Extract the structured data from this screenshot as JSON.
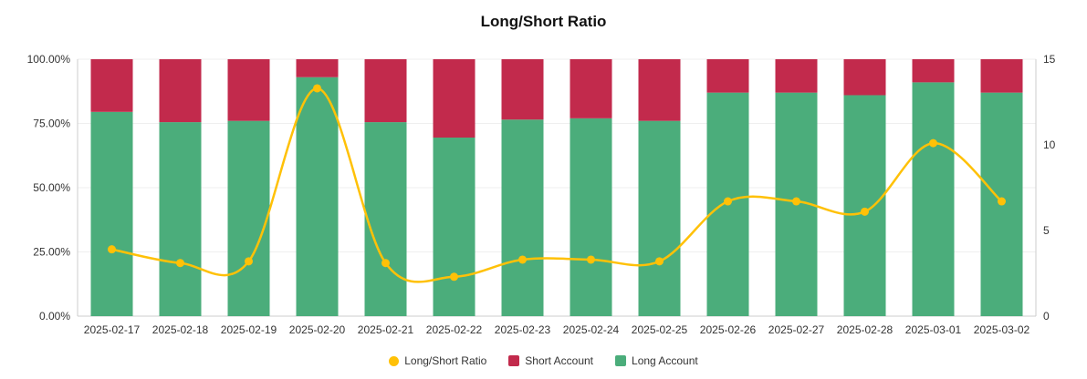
{
  "title": "Long/Short Ratio",
  "chart_data": {
    "type": "bar",
    "subtype": "stacked-percentage-bars-with-line-overlay",
    "title": "Long/Short Ratio",
    "categories": [
      "2025-02-17",
      "2025-02-18",
      "2025-02-19",
      "2025-02-20",
      "2025-02-21",
      "2025-02-22",
      "2025-02-23",
      "2025-02-24",
      "2025-02-25",
      "2025-02-26",
      "2025-02-27",
      "2025-02-28",
      "2025-03-01",
      "2025-03-02"
    ],
    "series": [
      {
        "name": "Long Account",
        "type": "bar",
        "stack": "total",
        "axis": "left",
        "unit": "%",
        "color": "#4bad7b",
        "values": [
          79.5,
          75.5,
          76,
          93,
          75.5,
          69.5,
          76.5,
          77,
          76,
          87,
          87,
          86,
          91,
          87
        ]
      },
      {
        "name": "Short Account",
        "type": "bar",
        "stack": "total",
        "axis": "left",
        "unit": "%",
        "color": "#c22a4c",
        "values": [
          20.5,
          24.5,
          24,
          7,
          24.5,
          30.5,
          23.5,
          23,
          24,
          13,
          13,
          14,
          9,
          13
        ]
      },
      {
        "name": "Long/Short Ratio",
        "type": "line",
        "axis": "right",
        "color": "#ffc107",
        "values": [
          3.9,
          3.1,
          3.2,
          13.3,
          3.1,
          2.3,
          3.3,
          3.3,
          3.2,
          6.7,
          6.7,
          6.1,
          10.1,
          6.7
        ]
      }
    ],
    "left_axis": {
      "min": 0,
      "max": 100,
      "tick_values": [
        0,
        25,
        50,
        75,
        100
      ],
      "tick_labels": [
        "0.00%",
        "25.00%",
        "50.00%",
        "75.00%",
        "100.00%"
      ]
    },
    "right_axis": {
      "min": 0,
      "max": 15,
      "tick_values": [
        0,
        5,
        10,
        15
      ],
      "tick_labels": [
        "0",
        "5",
        "10",
        "15"
      ]
    },
    "legend": [
      {
        "label": "Long/Short Ratio",
        "shape": "circle",
        "color": "#ffc107"
      },
      {
        "label": "Short Account",
        "shape": "square",
        "color": "#c22a4c"
      },
      {
        "label": "Long Account",
        "shape": "square",
        "color": "#4bad7b"
      }
    ],
    "legend_position": "bottom",
    "grid": true
  }
}
